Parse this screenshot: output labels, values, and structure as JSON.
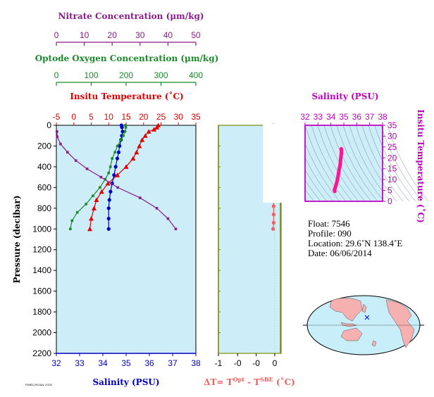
{
  "axes": {
    "nitrate": {
      "label": "Nitrate Concentration (μm/kg)",
      "ticks": [
        "0",
        "10",
        "20",
        "30",
        "40",
        "50"
      ],
      "range": [
        0,
        50
      ],
      "color": "#8b1c8b"
    },
    "oxygen": {
      "label": "Optode Oxygen Concentration (μm/kg)",
      "ticks": [
        "0",
        "100",
        "200",
        "300",
        "400"
      ],
      "range": [
        0,
        400
      ],
      "color": "#1a8a2a"
    },
    "temperature": {
      "label": "Insitu Temperature (˚C)",
      "ticks": [
        "-5",
        "0",
        "5",
        "10",
        "15",
        "20",
        "25",
        "30",
        "35"
      ],
      "range": [
        -5,
        35
      ],
      "color": "#e00000"
    },
    "salinity": {
      "label": "Salinity (PSU)",
      "ticks": [
        "32",
        "33",
        "34",
        "35",
        "36",
        "37",
        "38"
      ],
      "range": [
        32,
        38
      ],
      "color": "#0000c0"
    },
    "pressure": {
      "label": "Pressure (decibar)",
      "ticks": [
        "0",
        "200",
        "400",
        "600",
        "800",
        "1000",
        "1200",
        "1400",
        "1600",
        "1800",
        "2000",
        "2200"
      ],
      "range": [
        0,
        2200
      ]
    },
    "delta_t": {
      "label_parts": [
        "ΔT= T",
        "Opt",
        " - T",
        "SBE",
        " (˚C)"
      ],
      "ticks": [
        "-1",
        "-0",
        "-0",
        "0"
      ],
      "range": [
        -1,
        0.1
      ],
      "color": "#f06060"
    },
    "ts_salinity": {
      "label": "Salinity (PSU)",
      "ticks": [
        "32",
        "33",
        "34",
        "35",
        "36",
        "37",
        "38"
      ],
      "range": [
        32,
        38
      ],
      "color": "#c000c0"
    },
    "ts_temperature": {
      "label": "Insitu Temperature (˚C)",
      "ticks": [
        "0",
        "5",
        "10",
        "15",
        "20",
        "25",
        "30",
        "35"
      ],
      "range": [
        0,
        35
      ],
      "color": "#c000c0"
    }
  },
  "info": {
    "float": "Float:  7546",
    "profile": "Profile:  090",
    "location": "Location:  29.6˚N  138.4˚E",
    "date": "Date:  06/06/2014"
  },
  "footer_small": "PMEL/NOAA 2014",
  "colors": {
    "panel_bg": "#cdeef8",
    "map_ocean": "#c8eefa",
    "map_land": "#f6b0b0",
    "ts_series": "#ff1493",
    "marker": "#0000ff"
  },
  "chart_data": [
    {
      "type": "line",
      "title": "Main profile panel",
      "y_axis": "Pressure (decibar)",
      "ylim": [
        0,
        2200
      ],
      "series": [
        {
          "name": "Insitu Temperature (˚C)",
          "marker": "triangle",
          "color": "#e00000",
          "x": [
            24.2,
            23.8,
            23.0,
            21.5,
            20.5,
            19.6,
            18.8,
            18.0,
            17.0,
            15.0,
            12.5,
            9.8,
            8.0,
            6.5,
            5.8,
            5.0,
            4.6
          ],
          "y": [
            0,
            20,
            40,
            60,
            100,
            140,
            200,
            260,
            320,
            400,
            480,
            560,
            640,
            720,
            800,
            900,
            1000
          ]
        },
        {
          "name": "Salinity (PSU)",
          "marker": "circle",
          "color": "#0000c0",
          "x": [
            34.8,
            34.82,
            34.85,
            34.82,
            34.78,
            34.72,
            34.68,
            34.62,
            34.55,
            34.48,
            34.4,
            34.33,
            34.28,
            34.25,
            34.25,
            34.25
          ],
          "y": [
            0,
            20,
            60,
            100,
            140,
            200,
            260,
            320,
            400,
            480,
            560,
            640,
            720,
            800,
            900,
            1000
          ]
        },
        {
          "name": "Optode Oxygen Concentration (μm/kg)",
          "marker": "square",
          "color": "#1a8a2a",
          "x": [
            198,
            199,
            197,
            192,
            185,
            175,
            168,
            160,
            155,
            150,
            140,
            125,
            105,
            85,
            60,
            45,
            40
          ],
          "y": [
            0,
            20,
            60,
            100,
            140,
            200,
            260,
            320,
            400,
            460,
            520,
            600,
            680,
            760,
            840,
            920,
            1000
          ]
        },
        {
          "name": "Nitrate Concentration (μm/kg)",
          "marker": "square",
          "color": "#8b1c8b",
          "x": [
            0.2,
            0.3,
            1.5,
            4,
            7,
            11,
            16,
            22,
            30,
            36,
            40,
            42.8
          ],
          "y": [
            60,
            110,
            180,
            260,
            340,
            420,
            500,
            600,
            700,
            800,
            900,
            1000
          ]
        }
      ]
    },
    {
      "type": "line",
      "title": "ΔT panel",
      "xlim": [
        -1,
        0.1
      ],
      "ylim": [
        0,
        2200
      ],
      "series": [
        {
          "name": "ΔT",
          "marker": "circle",
          "color": "#f06060",
          "x": [
            -0.03,
            -0.05,
            -0.1,
            -0.08,
            -0.06,
            -0.05,
            -0.05,
            -0.04,
            -0.03,
            -0.02,
            -0.04,
            -0.09,
            -0.03,
            -0.02,
            -0.02,
            -0.02,
            -0.03
          ],
          "y": [
            0,
            20,
            40,
            100,
            160,
            220,
            300,
            380,
            440,
            500,
            560,
            620,
            700,
            780,
            860,
            940,
            1000
          ]
        }
      ]
    },
    {
      "type": "line",
      "title": "T-S diagram",
      "xlabel": "Salinity (PSU)",
      "ylabel": "Insitu Temperature (˚C)",
      "xlim": [
        32,
        38
      ],
      "ylim": [
        0,
        35
      ],
      "series": [
        {
          "name": "T-S",
          "color": "#ff1493",
          "x": [
            34.3,
            34.28,
            34.3,
            34.35,
            34.42,
            34.5,
            34.58,
            34.65,
            34.72,
            34.76,
            34.8,
            34.82,
            34.8
          ],
          "y": [
            4.6,
            5.0,
            5.8,
            6.5,
            8.0,
            9.8,
            12.5,
            15.0,
            17.0,
            19.6,
            21.5,
            23.0,
            24.2
          ]
        }
      ]
    }
  ]
}
